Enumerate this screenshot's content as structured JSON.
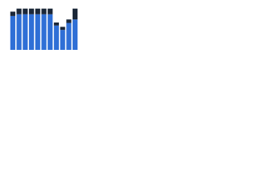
{
  "chart_data": {
    "type": "stacked_bar",
    "categories": [
      null,
      null,
      null,
      null,
      null,
      null,
      null,
      null,
      null,
      null,
      null
    ],
    "series": [
      {
        "color": "#2f6fd6",
        "values": [
          78,
          82,
          82,
          82,
          82,
          82,
          82,
          56,
          46,
          62,
          70
        ]
      },
      {
        "color": "#1b2738",
        "values": [
          10,
          13,
          13,
          13,
          13,
          13,
          13,
          7,
          7,
          8,
          25
        ]
      }
    ],
    "ylim": [
      0,
      100
    ]
  }
}
